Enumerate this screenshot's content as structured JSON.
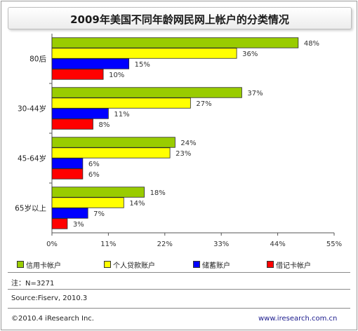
{
  "chart_data": {
    "type": "bar",
    "orientation": "horizontal",
    "title": "2009年美国不同年龄网民网上帐户的分类情况",
    "categories": [
      "80后",
      "30-44岁",
      "45-64岁",
      "65岁以上"
    ],
    "series": [
      {
        "name": "信用卡帐户",
        "color": "#99cc00",
        "values": [
          48,
          37,
          24,
          18
        ]
      },
      {
        "name": "个人贷款账户",
        "color": "#ffff00",
        "values": [
          36,
          27,
          23,
          14
        ]
      },
      {
        "name": "储蓄账户",
        "color": "#0000ff",
        "values": [
          15,
          11,
          6,
          7
        ]
      },
      {
        "name": "借记卡帐户",
        "color": "#ff0000",
        "values": [
          10,
          8,
          6,
          3
        ]
      }
    ],
    "value_labels": [
      [
        "48%",
        "36%",
        "15%",
        "10%"
      ],
      [
        "37%",
        "27%",
        "11%",
        "8%"
      ],
      [
        "24%",
        "23%",
        "6%",
        "6%"
      ],
      [
        "18%",
        "14%",
        "7%",
        "3%"
      ]
    ],
    "xlim": [
      0,
      55
    ],
    "x_ticks": [
      "0%",
      "11%",
      "22%",
      "33%",
      "44%",
      "55%"
    ],
    "grid": false,
    "legend_position": "bottom"
  },
  "note": "注：N=3271",
  "source": "Source:Fiserv, 2010.3",
  "copyright": "©2010.4 iResearch Inc.",
  "website": "www.iresearch.com.cn"
}
